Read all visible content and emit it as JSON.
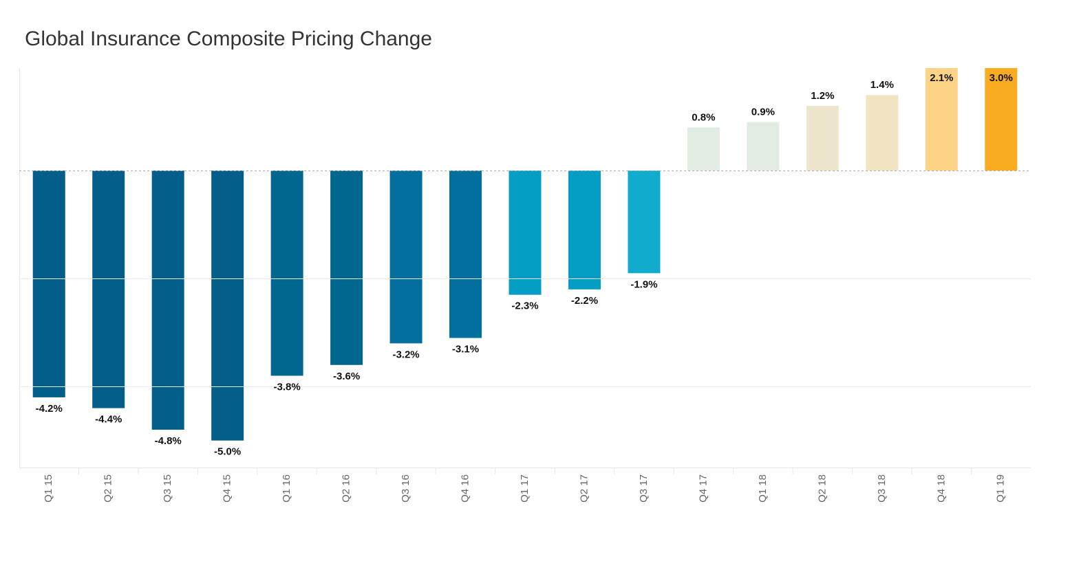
{
  "chart_data": {
    "type": "bar",
    "title": "Global Insurance Composite Pricing Change",
    "categories": [
      "Q1 15",
      "Q2 15",
      "Q3 15",
      "Q4 15",
      "Q1 16",
      "Q2 16",
      "Q3 16",
      "Q4 16",
      "Q1 17",
      "Q2 17",
      "Q3 17",
      "Q4 17",
      "Q1 18",
      "Q2 18",
      "Q3 18",
      "Q4 18",
      "Q1 19"
    ],
    "values": [
      -4.2,
      -4.4,
      -4.8,
      -5.0,
      -3.8,
      -3.6,
      -3.2,
      -3.1,
      -2.3,
      -2.2,
      -1.9,
      0.8,
      0.9,
      1.2,
      1.4,
      2.1,
      3.0
    ],
    "value_labels": [
      "-4.2%",
      "-4.4%",
      "-4.8%",
      "-5.0%",
      "-3.8%",
      "-3.6%",
      "-3.2%",
      "-3.1%",
      "-2.3%",
      "-2.2%",
      "-1.9%",
      "0.8%",
      "0.9%",
      "1.2%",
      "1.4%",
      "2.1%",
      "3.0%"
    ],
    "colors": [
      "#035e8a",
      "#035e8a",
      "#035e8a",
      "#035e8a",
      "#02678f",
      "#02678f",
      "#036f9f",
      "#036f9f",
      "#049dc4",
      "#049dc4",
      "#10abcd",
      "#e1ede3",
      "#e1ede3",
      "#ede6cc",
      "#f2e5c3",
      "#fdd386",
      "#f9ac1f"
    ],
    "ylim": [
      -5.5,
      1.9
    ],
    "yticks": [
      -4,
      -2,
      0
    ],
    "grid": true
  }
}
